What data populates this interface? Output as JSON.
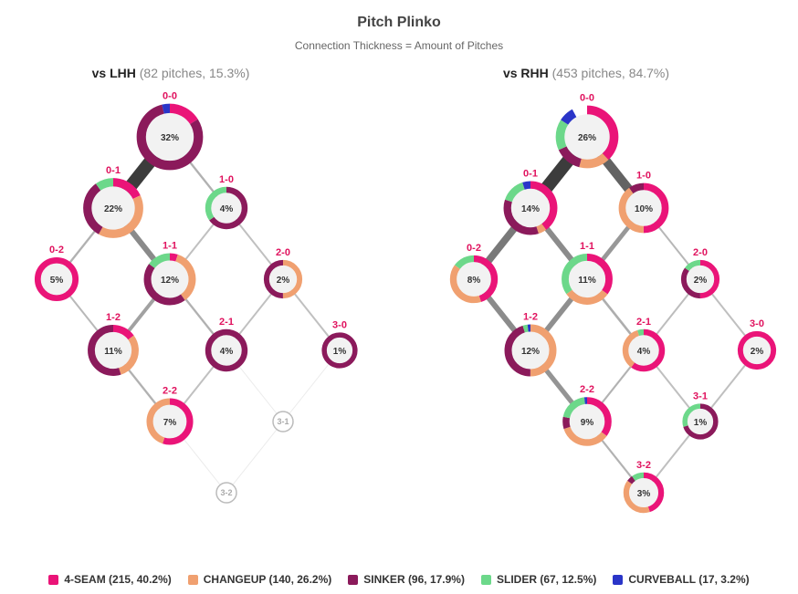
{
  "title": "Pitch Plinko",
  "subtitle": "Connection Thickness = Amount of Pitches",
  "pitch_colors": {
    "4-SEAM": "#ea1478",
    "CHANGEUP": "#f0a070",
    "SINKER": "#8b1a5b",
    "SLIDER": "#6cd88a",
    "CURVEBALL": "#2a35c8"
  },
  "legend": [
    {
      "pitch": "4-SEAM",
      "label": "4-SEAM (215, 40.2%)"
    },
    {
      "pitch": "CHANGEUP",
      "label": "CHANGEUP (140, 26.2%)"
    },
    {
      "pitch": "SINKER",
      "label": "SINKER (96, 17.9%)"
    },
    {
      "pitch": "SLIDER",
      "label": "SLIDER (67, 12.5%)"
    },
    {
      "pitch": "CURVEBALL",
      "label": "CURVEBALL (17, 3.2%)"
    }
  ],
  "chart_data": [
    {
      "type": "plinko",
      "side_label": "vs LHH",
      "side_meta": "(82 pitches, 15.3%)",
      "nodes": [
        {
          "count": "0-0",
          "pct": "32%",
          "share": 32,
          "mix": {
            "4-SEAM": 0.16,
            "SINKER": 0.8,
            "CURVEBALL": 0.04
          }
        },
        {
          "count": "0-1",
          "pct": "22%",
          "share": 22,
          "mix": {
            "4-SEAM": 0.18,
            "SINKER": 0.32,
            "CHANGEUP": 0.4,
            "SLIDER": 0.1
          }
        },
        {
          "count": "1-0",
          "pct": "4%",
          "share": 4,
          "mix": {
            "SINKER": 0.65,
            "SLIDER": 0.35
          }
        },
        {
          "count": "0-2",
          "pct": "5%",
          "share": 5,
          "mix": {
            "4-SEAM": 1.0
          }
        },
        {
          "count": "1-1",
          "pct": "12%",
          "share": 12,
          "mix": {
            "4-SEAM": 0.05,
            "SINKER": 0.45,
            "CHANGEUP": 0.35,
            "SLIDER": 0.15
          }
        },
        {
          "count": "2-0",
          "pct": "2%",
          "share": 2,
          "mix": {
            "SINKER": 0.5,
            "CHANGEUP": 0.5
          }
        },
        {
          "count": "1-2",
          "pct": "11%",
          "share": 11,
          "mix": {
            "4-SEAM": 0.15,
            "SINKER": 0.55,
            "CHANGEUP": 0.3
          }
        },
        {
          "count": "2-1",
          "pct": "4%",
          "share": 4,
          "mix": {
            "SINKER": 1.0
          }
        },
        {
          "count": "3-0",
          "pct": "1%",
          "share": 1,
          "mix": {
            "SINKER": 1.0
          }
        },
        {
          "count": "2-2",
          "pct": "7%",
          "share": 7,
          "mix": {
            "4-SEAM": 0.55,
            "CHANGEUP": 0.45
          }
        },
        {
          "count": "3-1",
          "pct": "",
          "share": 0,
          "mix": {}
        },
        {
          "count": "3-2",
          "pct": "",
          "share": 0,
          "mix": {}
        }
      ],
      "links": [
        {
          "from": "0-0",
          "to": "0-1",
          "pitches": 18
        },
        {
          "from": "0-0",
          "to": "1-0",
          "pitches": 3
        },
        {
          "from": "0-1",
          "to": "0-2",
          "pitches": 3
        },
        {
          "from": "0-1",
          "to": "1-1",
          "pitches": 8
        },
        {
          "from": "1-0",
          "to": "1-1",
          "pitches": 1
        },
        {
          "from": "1-0",
          "to": "2-0",
          "pitches": 1
        },
        {
          "from": "0-2",
          "to": "1-2",
          "pitches": 2
        },
        {
          "from": "1-1",
          "to": "1-2",
          "pitches": 5
        },
        {
          "from": "1-1",
          "to": "2-1",
          "pitches": 3
        },
        {
          "from": "2-0",
          "to": "2-1",
          "pitches": 1
        },
        {
          "from": "2-0",
          "to": "3-0",
          "pitches": 1
        },
        {
          "from": "1-2",
          "to": "2-2",
          "pitches": 3
        },
        {
          "from": "2-1",
          "to": "2-2",
          "pitches": 1
        },
        {
          "from": "2-1",
          "to": "3-1",
          "pitches": 0
        },
        {
          "from": "3-0",
          "to": "3-1",
          "pitches": 0
        },
        {
          "from": "2-2",
          "to": "3-2",
          "pitches": 0
        },
        {
          "from": "3-1",
          "to": "3-2",
          "pitches": 0
        }
      ]
    },
    {
      "type": "plinko",
      "side_label": "vs RHH",
      "side_meta": "(453 pitches, 84.7%)",
      "nodes": [
        {
          "count": "0-0",
          "pct": "26%",
          "share": 26,
          "mix": {
            "4-SEAM": 0.38,
            "CHANGEUP": 0.16,
            "SLIDER": 0.16,
            "SINKER": 0.14,
            "CURVEBALL": 0.08
          }
        },
        {
          "count": "0-1",
          "pct": "14%",
          "share": 14,
          "mix": {
            "4-SEAM": 0.4,
            "CHANGEUP": 0.05,
            "SINKER": 0.35,
            "SLIDER": 0.15,
            "CURVEBALL": 0.05
          }
        },
        {
          "count": "1-0",
          "pct": "10%",
          "share": 10,
          "mix": {
            "CHANGEUP": 0.4,
            "4-SEAM": 0.5,
            "SINKER": 0.1
          }
        },
        {
          "count": "0-2",
          "pct": "8%",
          "share": 8,
          "mix": {
            "4-SEAM": 0.45,
            "CHANGEUP": 0.4,
            "SLIDER": 0.15
          }
        },
        {
          "count": "1-1",
          "pct": "11%",
          "share": 11,
          "mix": {
            "4-SEAM": 0.35,
            "CHANGEUP": 0.3,
            "SLIDER": 0.35
          }
        },
        {
          "count": "2-0",
          "pct": "2%",
          "share": 2,
          "mix": {
            "4-SEAM": 0.5,
            "SINKER": 0.35,
            "SLIDER": 0.15
          }
        },
        {
          "count": "1-2",
          "pct": "12%",
          "share": 12,
          "mix": {
            "CHANGEUP": 0.5,
            "SINKER": 0.45,
            "SLIDER": 0.03,
            "CURVEBALL": 0.02
          }
        },
        {
          "count": "2-1",
          "pct": "4%",
          "share": 4,
          "mix": {
            "4-SEAM": 0.6,
            "CHANGEUP": 0.35,
            "SLIDER": 0.05
          }
        },
        {
          "count": "3-0",
          "pct": "2%",
          "share": 2,
          "mix": {
            "4-SEAM": 1.0
          }
        },
        {
          "count": "2-2",
          "pct": "9%",
          "share": 9,
          "mix": {
            "4-SEAM": 0.35,
            "CHANGEUP": 0.35,
            "SLIDER": 0.2,
            "SINKER": 0.08,
            "CURVEBALL": 0.02
          }
        },
        {
          "count": "3-1",
          "pct": "1%",
          "share": 1,
          "mix": {
            "SINKER": 0.7,
            "SLIDER": 0.3
          }
        },
        {
          "count": "3-2",
          "pct": "3%",
          "share": 3,
          "mix": {
            "4-SEAM": 0.45,
            "CHANGEUP": 0.4,
            "SLIDER": 0.1,
            "SINKER": 0.05
          }
        }
      ],
      "links": [
        {
          "from": "0-0",
          "to": "0-1",
          "pitches": 64
        },
        {
          "from": "0-0",
          "to": "1-0",
          "pitches": 46
        },
        {
          "from": "0-1",
          "to": "0-2",
          "pitches": 36
        },
        {
          "from": "0-1",
          "to": "1-1",
          "pitches": 28
        },
        {
          "from": "1-0",
          "to": "1-1",
          "pitches": 22
        },
        {
          "from": "1-0",
          "to": "2-0",
          "pitches": 8
        },
        {
          "from": "0-2",
          "to": "1-2",
          "pitches": 28
        },
        {
          "from": "1-1",
          "to": "1-2",
          "pitches": 26
        },
        {
          "from": "1-1",
          "to": "2-1",
          "pitches": 12
        },
        {
          "from": "2-0",
          "to": "2-1",
          "pitches": 5
        },
        {
          "from": "2-0",
          "to": "3-0",
          "pitches": 4
        },
        {
          "from": "1-2",
          "to": "2-2",
          "pitches": 24
        },
        {
          "from": "2-1",
          "to": "2-2",
          "pitches": 10
        },
        {
          "from": "2-1",
          "to": "3-1",
          "pitches": 4
        },
        {
          "from": "3-0",
          "to": "3-1",
          "pitches": 4
        },
        {
          "from": "2-2",
          "to": "3-2",
          "pitches": 10
        },
        {
          "from": "3-1",
          "to": "3-2",
          "pitches": 4
        }
      ]
    }
  ]
}
